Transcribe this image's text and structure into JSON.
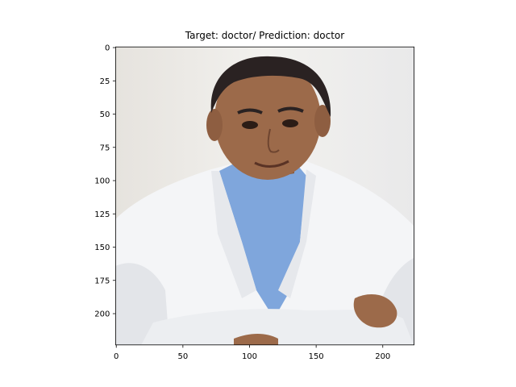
{
  "chart_data": {
    "type": "image",
    "title": "Target: doctor/ Prediction: doctor",
    "image_content": "photo of a man in a white lab coat over a blue shirt, arms crossed",
    "xlim": [
      -0.5,
      223.5
    ],
    "ylim": [
      223.5,
      -0.5
    ],
    "x_ticks": [
      0,
      50,
      100,
      150,
      200
    ],
    "y_ticks": [
      0,
      25,
      50,
      75,
      100,
      125,
      150,
      175,
      200
    ],
    "colors": {
      "background_wall": "#ececec",
      "coat": "#f4f5f7",
      "coat_shadow": "#d8dbe0",
      "shirt": "#7fa6dc",
      "skin": "#9c6a4a",
      "hair": "#2a2222"
    }
  }
}
